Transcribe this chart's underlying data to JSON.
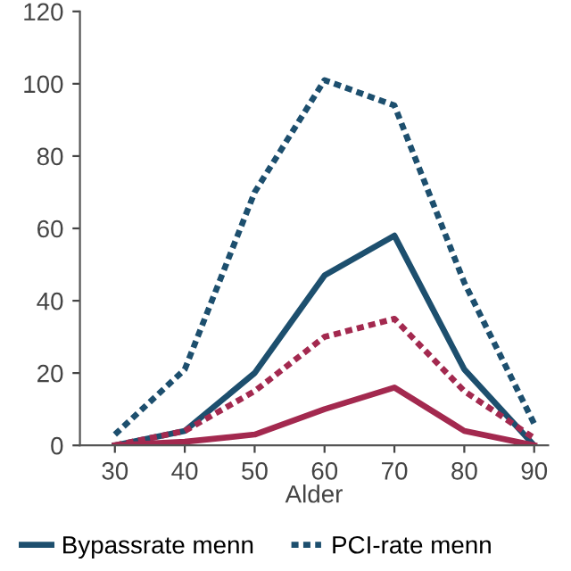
{
  "chart_data": {
    "type": "line",
    "xlabel": "Alder",
    "x": [
      30,
      40,
      50,
      60,
      70,
      80,
      90
    ],
    "xlim": [
      25,
      92
    ],
    "xticks": [
      30,
      40,
      50,
      60,
      70,
      80,
      90
    ],
    "ylim": [
      0,
      120
    ],
    "yticks": [
      0,
      20,
      40,
      60,
      80,
      100,
      120
    ],
    "grid": false,
    "legend": "bottom",
    "marker": "none",
    "series": [
      {
        "name": "Bypassrate menn",
        "color": "#1d4f6e",
        "line_style": "solid",
        "values": [
          0,
          4,
          20,
          47,
          58,
          21,
          0
        ]
      },
      {
        "name": "PCI-rate menn",
        "color": "#1d4f6e",
        "line_style": "dotted",
        "values": [
          3,
          21,
          70,
          101,
          94,
          45,
          6
        ]
      },
      {
        "color": "#a3294f",
        "line_style": "solid",
        "values": [
          0,
          1,
          3,
          10,
          16,
          4,
          0
        ]
      },
      {
        "color": "#a3294f",
        "line_style": "dotted",
        "values": [
          0,
          4,
          15,
          30,
          35,
          15,
          2
        ]
      }
    ]
  }
}
